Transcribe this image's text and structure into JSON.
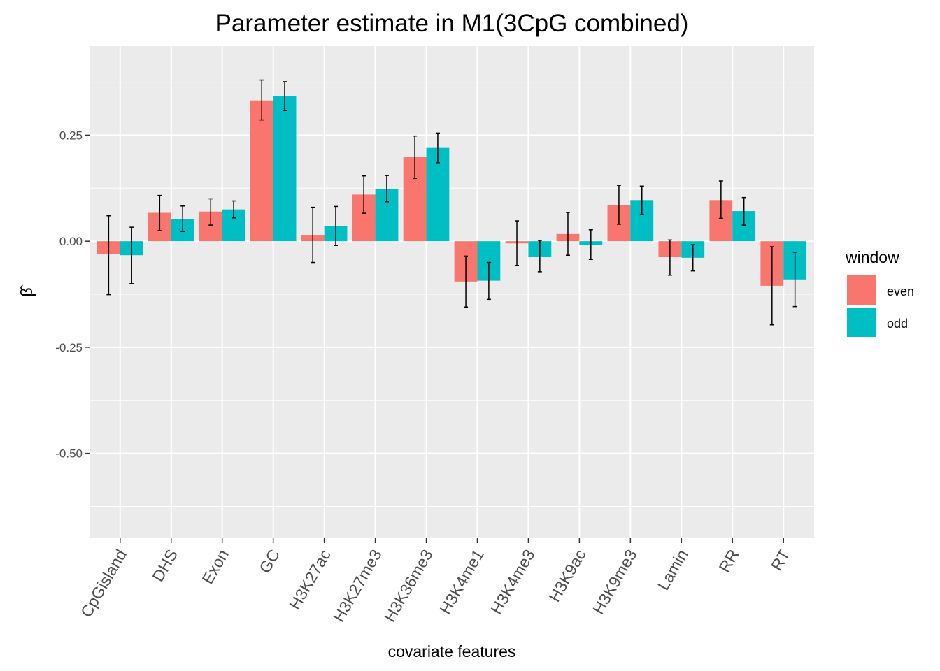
{
  "chart_data": {
    "type": "bar",
    "title": "Parameter estimate in M1(3CpG combined)",
    "xlabel": "covariate features",
    "ylabel": "β̂",
    "categories": [
      "CpGisland",
      "DHS",
      "Exon",
      "GC",
      "H3K27ac",
      "H3K27me3",
      "H3K36me3",
      "H3K4me1",
      "H3K4me3",
      "H3K9ac",
      "H3K9me3",
      "Lamin",
      "RR",
      "RT"
    ],
    "ylim": [
      -0.7,
      0.46
    ],
    "yticks": [
      0.25,
      0.0,
      -0.25,
      -0.5
    ],
    "ytick_labels": [
      "0.25",
      "0.00",
      "-0.25",
      "-0.50"
    ],
    "grid": true,
    "legend": {
      "title": "window",
      "placement": "right"
    },
    "series": [
      {
        "name": "even",
        "color": "#F8766D",
        "values": [
          -0.03,
          0.067,
          0.07,
          0.332,
          0.015,
          0.11,
          0.198,
          -0.095,
          -0.005,
          0.017,
          0.086,
          -0.037,
          0.097,
          -0.105
        ],
        "lower": [
          -0.126,
          0.025,
          0.038,
          0.286,
          -0.05,
          0.066,
          0.148,
          -0.155,
          -0.057,
          -0.033,
          0.04,
          -0.08,
          0.054,
          -0.197
        ],
        "upper": [
          0.06,
          0.108,
          0.1,
          0.38,
          0.08,
          0.154,
          0.248,
          -0.035,
          0.048,
          0.068,
          0.132,
          0.003,
          0.142,
          -0.013
        ]
      },
      {
        "name": "odd",
        "color": "#00BFC4",
        "values": [
          -0.033,
          0.052,
          0.075,
          0.342,
          0.036,
          0.124,
          0.22,
          -0.093,
          -0.036,
          -0.009,
          0.097,
          -0.039,
          0.071,
          -0.09
        ],
        "lower": [
          -0.1,
          0.023,
          0.055,
          0.308,
          -0.01,
          0.093,
          0.185,
          -0.137,
          -0.072,
          -0.043,
          0.063,
          -0.07,
          0.038,
          -0.154
        ],
        "upper": [
          0.033,
          0.083,
          0.095,
          0.376,
          0.082,
          0.155,
          0.255,
          -0.05,
          0.002,
          0.027,
          0.13,
          -0.008,
          0.103,
          -0.026
        ]
      }
    ]
  }
}
